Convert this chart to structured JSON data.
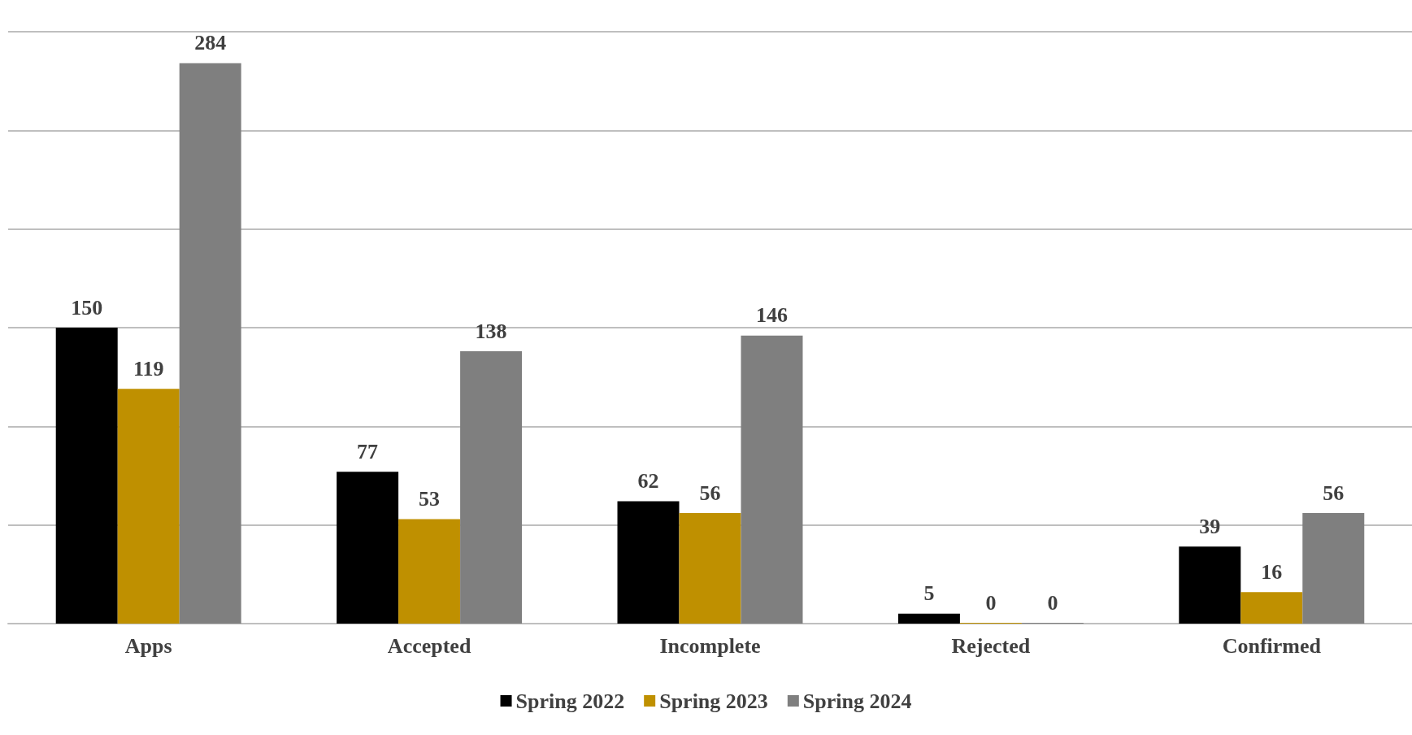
{
  "chart_data": {
    "type": "bar",
    "categories": [
      "Apps",
      "Accepted",
      "Incomplete",
      "Rejected",
      "Confirmed"
    ],
    "series": [
      {
        "name": "Spring 2022",
        "color": "#000000",
        "values": [
          150,
          77,
          62,
          5,
          39
        ]
      },
      {
        "name": "Spring 2023",
        "color": "#bf9000",
        "values": [
          119,
          53,
          56,
          0,
          16
        ]
      },
      {
        "name": "Spring 2024",
        "color": "#7f7f7f",
        "values": [
          284,
          138,
          146,
          0,
          56
        ]
      }
    ],
    "ylim": [
      0,
      300
    ],
    "yticks": [
      {
        "value": 0,
        "label": null
      },
      {
        "value": 50,
        "label": null
      },
      {
        "value": 100,
        "label": null
      },
      {
        "value": 150,
        "label": null
      },
      {
        "value": 200,
        "label": null
      },
      {
        "value": 250,
        "label": null
      },
      {
        "value": 300,
        "label": null
      }
    ],
    "tick_labels": "x",
    "grid": "y",
    "data_labels": true,
    "legend": "bottom"
  }
}
